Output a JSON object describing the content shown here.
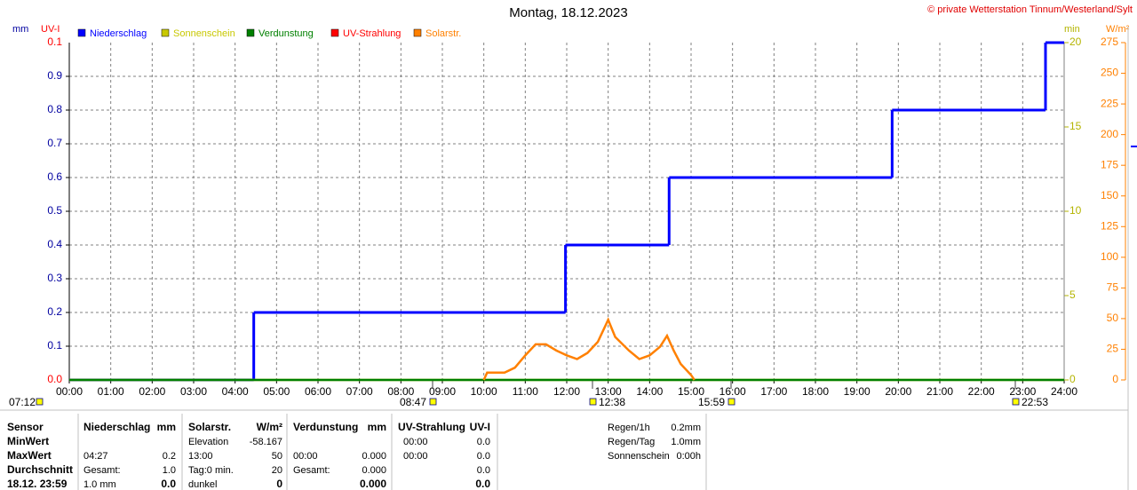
{
  "chart_data": {
    "type": "line",
    "title": "Montag, 18.12.2023",
    "copyright": "© private Wetterstation Tinnum/Westerland/Sylt",
    "units": {
      "mm": "mm",
      "uv": "UV-I",
      "min": "min",
      "wm2": "W/m²"
    },
    "xlim": [
      0,
      24
    ],
    "xticks": [
      {
        "value": 0,
        "label": "00:00"
      },
      {
        "value": 1,
        "label": "01:00"
      },
      {
        "value": 2,
        "label": "02:00"
      },
      {
        "value": 3,
        "label": "03:00"
      },
      {
        "value": 4,
        "label": "04:00"
      },
      {
        "value": 5,
        "label": "05:00"
      },
      {
        "value": 6,
        "label": "06:00"
      },
      {
        "value": 7,
        "label": "07:00"
      },
      {
        "value": 8,
        "label": "08:00"
      },
      {
        "value": 9,
        "label": "09:00"
      },
      {
        "value": 10,
        "label": "10:00"
      },
      {
        "value": 11,
        "label": "11:00"
      },
      {
        "value": 12,
        "label": "12:00"
      },
      {
        "value": 13,
        "label": "13:00"
      },
      {
        "value": 14,
        "label": "14:00"
      },
      {
        "value": 15,
        "label": "15:00"
      },
      {
        "value": 16,
        "label": "16:00"
      },
      {
        "value": 17,
        "label": "17:00"
      },
      {
        "value": 18,
        "label": "18:00"
      },
      {
        "value": 19,
        "label": "19:00"
      },
      {
        "value": 20,
        "label": "20:00"
      },
      {
        "value": 21,
        "label": "21:00"
      },
      {
        "value": 22,
        "label": "22:00"
      },
      {
        "value": 23,
        "label": "23:00"
      },
      {
        "value": 24,
        "label": "24:00"
      }
    ],
    "ylim": [
      0,
      1
    ],
    "yticks": [
      0.1,
      0.2,
      0.3,
      0.4,
      0.5,
      0.6,
      0.7,
      0.8,
      0.9
    ],
    "uvlim": [
      0,
      0.1
    ],
    "uvticks": [
      {
        "value": 0,
        "label": "0.0"
      },
      0.1
    ],
    "y2lim": [
      0,
      20
    ],
    "y2ticks": [
      0,
      5,
      10,
      15,
      20
    ],
    "y3lim": [
      0,
      275
    ],
    "y3ticks": [
      0,
      25,
      50,
      75,
      100,
      125,
      150,
      175,
      200,
      225,
      250,
      275
    ],
    "grid": true,
    "series": [
      {
        "name": "Niederschlag",
        "color": "#0000ff",
        "axis": "y",
        "step": true,
        "x": [
          0,
          4.45,
          11.97,
          14.47,
          19.85,
          23.55
        ],
        "values": [
          0,
          0.2,
          0.4,
          0.6,
          0.8,
          1.0
        ]
      },
      {
        "name": "Sonnenschein",
        "color": "#c8c800",
        "axis": "y2",
        "x": [
          0,
          24
        ],
        "values": [
          0,
          0
        ]
      },
      {
        "name": "Verdunstung",
        "color": "#008000",
        "axis": "y",
        "x": [
          0,
          24
        ],
        "values": [
          0,
          0
        ]
      },
      {
        "name": "UV-Strahlung",
        "color": "#ff0000",
        "axis": "uv",
        "x": [],
        "values": []
      },
      {
        "name": "Solarstr.",
        "color": "#ff8000",
        "axis": "y3",
        "x": [
          10,
          10.08,
          10.5,
          10.75,
          11,
          11.25,
          11.5,
          11.75,
          12,
          12.25,
          12.5,
          12.75,
          13,
          13.17,
          13.5,
          13.75,
          14,
          14.25,
          14.42,
          14.58,
          14.75,
          15,
          15.08
        ],
        "values": [
          0,
          6,
          6,
          10,
          20,
          29,
          29,
          24,
          20,
          17,
          22,
          31,
          49,
          35,
          24,
          17,
          20,
          27,
          36,
          24,
          13,
          4,
          0
        ]
      }
    ],
    "annotations": [
      "07:12",
      "08:47",
      "12:38",
      "15:59",
      "22:53"
    ]
  },
  "table": {
    "row_labels": [
      "Sensor",
      "MinWert",
      "MaxWert",
      "Durchschnitt",
      "18.12. 23:59"
    ],
    "sections": [
      {
        "header": [
          "Niederschlag",
          "mm"
        ],
        "rows": [
          [
            null,
            null
          ],
          [
            "04:27",
            "0.2"
          ],
          [
            "Gesamt:",
            "1.0"
          ],
          [
            "1.0 mm",
            "0.0"
          ]
        ]
      },
      {
        "header": [
          "Solarstr.",
          "W/m²"
        ],
        "rows": [
          [
            "Elevation",
            "-58.167"
          ],
          [
            "13:00",
            "50"
          ],
          [
            "Tag:0 min.",
            "20"
          ],
          [
            "dunkel",
            "0"
          ]
        ]
      },
      {
        "header": [
          "Verdunstung",
          "mm"
        ],
        "rows": [
          [
            null,
            null
          ],
          [
            "00:00",
            "0.000"
          ],
          [
            "Gesamt:",
            "0.000"
          ],
          [
            null,
            "0.000"
          ]
        ]
      },
      {
        "header": [
          "UV-Strahlung",
          "UV-I"
        ],
        "rows": [
          [
            "00:00",
            "0.0"
          ],
          [
            "00:00",
            "0.0"
          ],
          [
            null,
            "0.0"
          ],
          [
            null,
            "0.0"
          ]
        ]
      }
    ],
    "summary": [
      [
        "Regen/1h",
        "0.2mm"
      ],
      [
        "Regen/Tag",
        "1.0mm"
      ],
      [
        "Sonnenschein",
        "0:00h"
      ]
    ]
  }
}
